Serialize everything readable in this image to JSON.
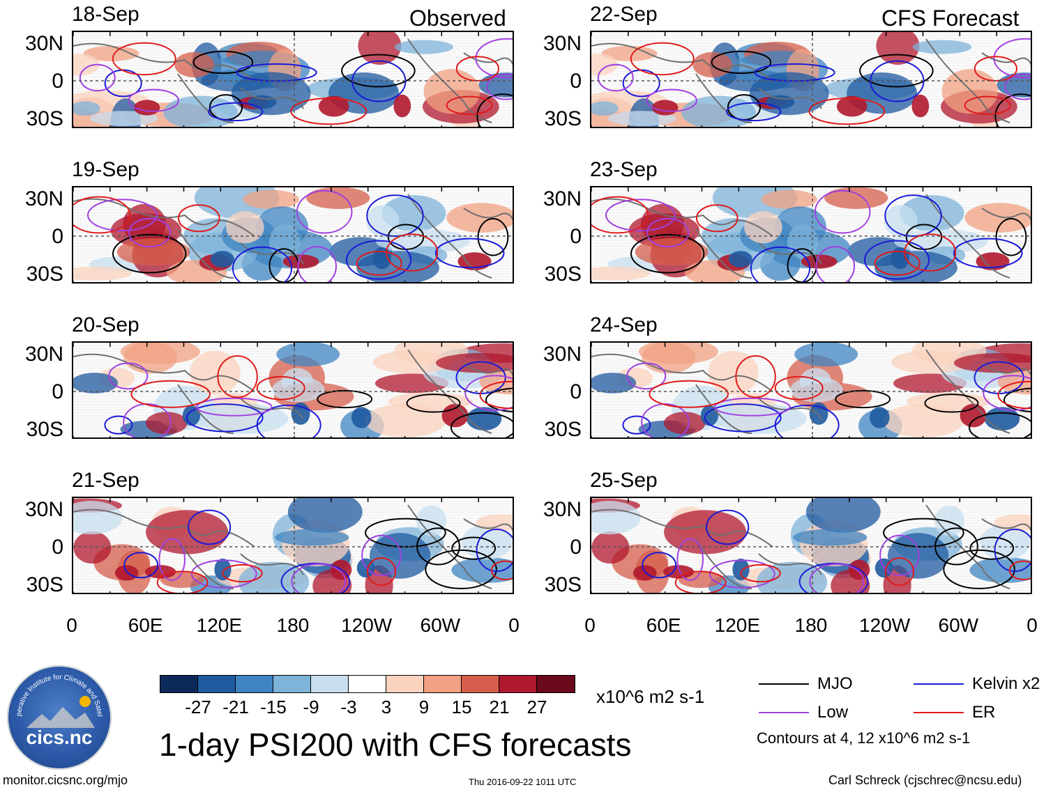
{
  "chart_data": {
    "type": "heatmap",
    "title": "1-day PSI200 with CFS forecasts",
    "variable": "PSI200",
    "units": "x10^6 m2 s-1",
    "observed_label": "Observed",
    "forecast_label": "CFS Forecast",
    "panels": [
      {
        "date": "18-Sep",
        "column": "observed"
      },
      {
        "date": "19-Sep",
        "column": "observed"
      },
      {
        "date": "20-Sep",
        "column": "observed"
      },
      {
        "date": "21-Sep",
        "column": "observed"
      },
      {
        "date": "22-Sep",
        "column": "forecast"
      },
      {
        "date": "23-Sep",
        "column": "forecast"
      },
      {
        "date": "24-Sep",
        "column": "forecast"
      },
      {
        "date": "25-Sep",
        "column": "forecast"
      }
    ],
    "x_ticks": [
      "0",
      "60E",
      "120E",
      "180",
      "120W",
      "60W",
      "0"
    ],
    "y_ticks": [
      "30N",
      "0",
      "30S"
    ],
    "colorbar": {
      "levels": [
        "-27",
        "-21",
        "-15",
        "-9",
        "-3",
        "3",
        "9",
        "15",
        "21",
        "27"
      ],
      "colors": [
        "#0b2a5a",
        "#1f5aa0",
        "#3f84c2",
        "#7eb3da",
        "#c8dff0",
        "#ffffff",
        "#fbd3bf",
        "#f1a183",
        "#d55f4c",
        "#b0182e",
        "#6a0a1c"
      ]
    },
    "legend": [
      {
        "label": "MJO",
        "color": "#000000"
      },
      {
        "label": "Kelvin x2",
        "color": "#1a1ad6"
      },
      {
        "label": "Low",
        "color": "#a040e0"
      },
      {
        "label": "ER",
        "color": "#e01a1a"
      }
    ],
    "contours_note": "Contours at 4, 12 x10^6 m2 s-1"
  },
  "footer": {
    "url": "monitor.cicsnc.org/mjo",
    "timestamp": "Thu 2016-09-22 1011 UTC",
    "author": "Carl Schreck (cjschrec@ncsu.edu)"
  },
  "logo": {
    "brand": "cics.nc",
    "ring_text": "Cooperative Institute for Climate and Satellites"
  }
}
